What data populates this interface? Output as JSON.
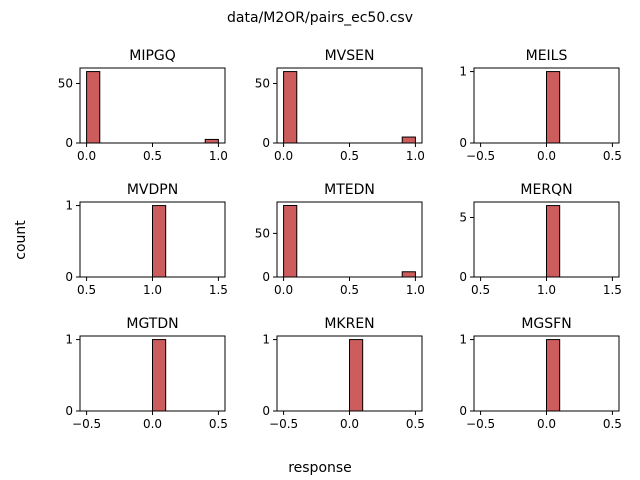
{
  "figure": {
    "suptitle": "data/M2OR/pairs_ec50.csv",
    "xlabel": "response",
    "ylabel": "count"
  },
  "colors": {
    "bar_fill": "#cd5c5c",
    "bar_edge": "#000000"
  },
  "chart_data": [
    {
      "type": "bar",
      "title": "MIPGQ",
      "xlim": [
        -0.05,
        1.05
      ],
      "ylim": [
        0,
        63
      ],
      "xticks": [
        0,
        0.5,
        1
      ],
      "xticklabels": [
        "0.0",
        "0.5",
        "1.0"
      ],
      "yticks": [
        0,
        50
      ],
      "yticklabels": [
        "0",
        "50"
      ],
      "bin_width": 0.1,
      "bins": [
        {
          "left": 0,
          "value": 60
        },
        {
          "left": 0.9,
          "value": 3
        }
      ]
    },
    {
      "type": "bar",
      "title": "MVSEN",
      "xlim": [
        -0.05,
        1.05
      ],
      "ylim": [
        0,
        63
      ],
      "xticks": [
        0,
        0.5,
        1
      ],
      "xticklabels": [
        "0.0",
        "0.5",
        "1.0"
      ],
      "yticks": [
        0,
        50
      ],
      "yticklabels": [
        "0",
        "50"
      ],
      "bin_width": 0.1,
      "bins": [
        {
          "left": 0,
          "value": 60
        },
        {
          "left": 0.9,
          "value": 5
        }
      ]
    },
    {
      "type": "bar",
      "title": "MEILS",
      "xlim": [
        -0.55,
        0.55
      ],
      "ylim": [
        0,
        1.05
      ],
      "xticks": [
        -0.5,
        0,
        0.5
      ],
      "xticklabels": [
        "−0.5",
        "0.0",
        "0.5"
      ],
      "yticks": [
        0,
        1
      ],
      "yticklabels": [
        "0",
        "1"
      ],
      "bin_width": 0.1,
      "bins": [
        {
          "left": 0,
          "value": 1
        }
      ]
    },
    {
      "type": "bar",
      "title": "MVDPN",
      "xlim": [
        0.45,
        1.55
      ],
      "ylim": [
        0,
        1.05
      ],
      "xticks": [
        0.5,
        1,
        1.5
      ],
      "xticklabels": [
        "0.5",
        "1.0",
        "1.5"
      ],
      "yticks": [
        0,
        1
      ],
      "yticklabels": [
        "0",
        "1"
      ],
      "bin_width": 0.1,
      "bins": [
        {
          "left": 1,
          "value": 1
        }
      ]
    },
    {
      "type": "bar",
      "title": "MTEDN",
      "xlim": [
        -0.05,
        1.05
      ],
      "ylim": [
        0,
        86
      ],
      "xticks": [
        0,
        0.5,
        1
      ],
      "xticklabels": [
        "0.0",
        "0.5",
        "1.0"
      ],
      "yticks": [
        0,
        50
      ],
      "yticklabels": [
        "0",
        "50"
      ],
      "bin_width": 0.1,
      "bins": [
        {
          "left": 0,
          "value": 82
        },
        {
          "left": 0.9,
          "value": 6
        }
      ]
    },
    {
      "type": "bar",
      "title": "MERQN",
      "xlim": [
        0.45,
        1.55
      ],
      "ylim": [
        0,
        6.3
      ],
      "xticks": [
        0.5,
        1,
        1.5
      ],
      "xticklabels": [
        "0.5",
        "1.0",
        "1.5"
      ],
      "yticks": [
        0,
        5
      ],
      "yticklabels": [
        "0",
        "5"
      ],
      "bin_width": 0.1,
      "bins": [
        {
          "left": 1,
          "value": 6
        }
      ]
    },
    {
      "type": "bar",
      "title": "MGTDN",
      "xlim": [
        -0.55,
        0.55
      ],
      "ylim": [
        0,
        1.05
      ],
      "xticks": [
        -0.5,
        0,
        0.5
      ],
      "xticklabels": [
        "−0.5",
        "0.0",
        "0.5"
      ],
      "yticks": [
        0,
        1
      ],
      "yticklabels": [
        "0",
        "1"
      ],
      "bin_width": 0.1,
      "bins": [
        {
          "left": 0,
          "value": 1
        }
      ]
    },
    {
      "type": "bar",
      "title": "MKREN",
      "xlim": [
        -0.55,
        0.55
      ],
      "ylim": [
        0,
        1.05
      ],
      "xticks": [
        -0.5,
        0,
        0.5
      ],
      "xticklabels": [
        "−0.5",
        "0.0",
        "0.5"
      ],
      "yticks": [
        0,
        1
      ],
      "yticklabels": [
        "0",
        "1"
      ],
      "bin_width": 0.1,
      "bins": [
        {
          "left": 0,
          "value": 1
        }
      ]
    },
    {
      "type": "bar",
      "title": "MGSFN",
      "xlim": [
        -0.55,
        0.55
      ],
      "ylim": [
        0,
        1.05
      ],
      "xticks": [
        -0.5,
        0,
        0.5
      ],
      "xticklabels": [
        "−0.5",
        "0.0",
        "0.5"
      ],
      "yticks": [
        0,
        1
      ],
      "yticklabels": [
        "0",
        "1"
      ],
      "bin_width": 0.1,
      "bins": [
        {
          "left": 0,
          "value": 1
        }
      ]
    }
  ]
}
